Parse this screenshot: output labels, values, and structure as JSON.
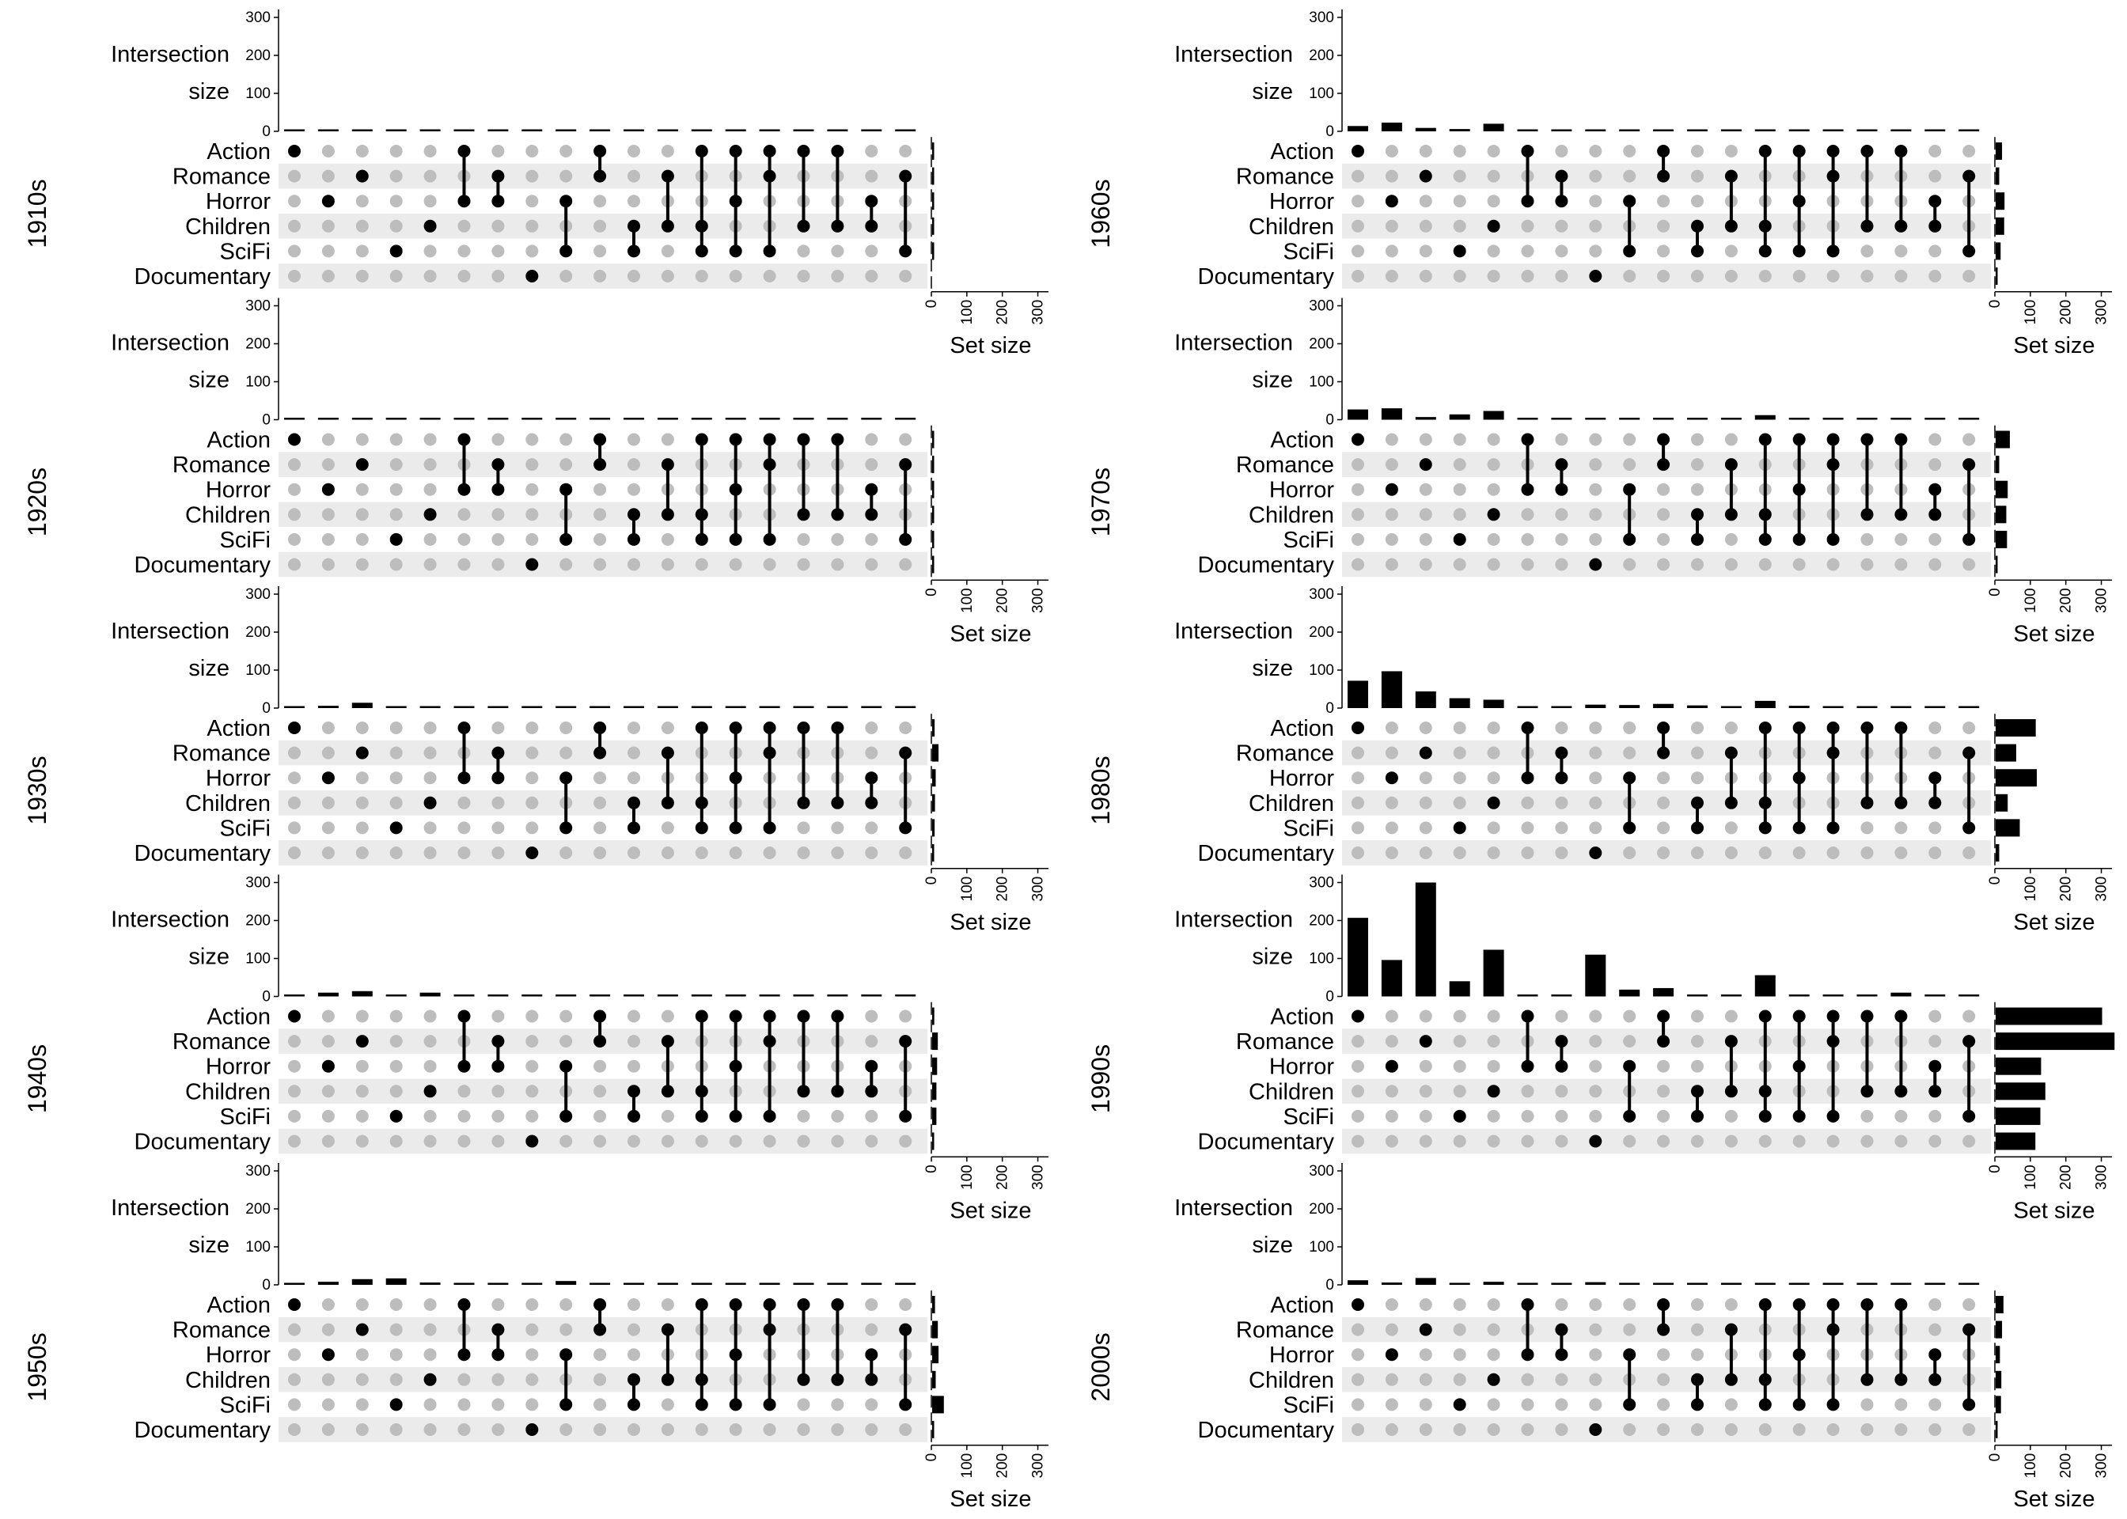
{
  "chart_data": {
    "type": "upset",
    "intersection_axis_label": [
      "Intersection",
      "size"
    ],
    "set_size_label": "Set size",
    "y_ticks": [
      0,
      100,
      200,
      300
    ],
    "y_range": [
      0,
      300
    ],
    "set_size_ticks": [
      0,
      100,
      200,
      300
    ],
    "set_size_range": [
      0,
      330
    ],
    "sets": [
      "Action",
      "Romance",
      "Horror",
      "Children",
      "SciFi",
      "Documentary"
    ],
    "intersections": [
      [
        "Action"
      ],
      [
        "Horror"
      ],
      [
        "Romance"
      ],
      [
        "SciFi"
      ],
      [
        "Children"
      ],
      [
        "Action",
        "Horror"
      ],
      [
        "Romance",
        "Horror"
      ],
      [
        "Documentary"
      ],
      [
        "Horror",
        "SciFi"
      ],
      [
        "Action",
        "Romance"
      ],
      [
        "Children",
        "SciFi"
      ],
      [
        "Romance",
        "Children"
      ],
      [
        "Action",
        "Children",
        "SciFi"
      ],
      [
        "Action",
        "Horror",
        "SciFi"
      ],
      [
        "Action",
        "Romance",
        "SciFi"
      ],
      [
        "Action",
        "Children"
      ],
      [
        "Action",
        "Children"
      ],
      [
        "Horror",
        "Children"
      ],
      [
        "Romance",
        "SciFi"
      ]
    ],
    "colors": {
      "active_dot": "#000000",
      "inactive_dot": "#bdbdbd",
      "stripe": "#ebebeb",
      "bar": "#000000"
    },
    "panels": [
      {
        "label": "1910s",
        "intersection_sizes": [
          2,
          1,
          1,
          1,
          1,
          1,
          1,
          1,
          1,
          1,
          1,
          1,
          1,
          1,
          1,
          1,
          1,
          1,
          1
        ],
        "set_sizes": [
          2,
          1,
          1,
          1,
          1,
          0
        ]
      },
      {
        "label": "1920s",
        "intersection_sizes": [
          2,
          1,
          3,
          1,
          1,
          1,
          1,
          1,
          1,
          1,
          1,
          1,
          1,
          1,
          1,
          1,
          1,
          1,
          1
        ],
        "set_sizes": [
          3,
          2,
          2,
          2,
          2,
          1
        ]
      },
      {
        "label": "1930s",
        "intersection_sizes": [
          4,
          6,
          14,
          1,
          5,
          1,
          1,
          1,
          1,
          1,
          1,
          1,
          1,
          1,
          1,
          1,
          1,
          1,
          1
        ],
        "set_sizes": [
          7,
          18,
          10,
          8,
          7,
          1
        ]
      },
      {
        "label": "1940s",
        "intersection_sizes": [
          4,
          10,
          14,
          1,
          10,
          1,
          1,
          1,
          1,
          1,
          1,
          1,
          1,
          1,
          1,
          1,
          1,
          1,
          1
        ],
        "set_sizes": [
          6,
          16,
          14,
          12,
          12,
          1
        ]
      },
      {
        "label": "1950s",
        "intersection_sizes": [
          5,
          8,
          15,
          17,
          6,
          1,
          1,
          1,
          10,
          1,
          1,
          1,
          1,
          1,
          1,
          1,
          1,
          1,
          1
        ],
        "set_sizes": [
          8,
          16,
          18,
          10,
          33,
          1
        ]
      },
      {
        "label": "1960s",
        "intersection_sizes": [
          14,
          23,
          9,
          6,
          20,
          1,
          1,
          1,
          3,
          1,
          1,
          1,
          2,
          1,
          1,
          1,
          1,
          1,
          1
        ],
        "set_sizes": [
          18,
          10,
          25,
          24,
          14,
          1
        ]
      },
      {
        "label": "1970s",
        "intersection_sizes": [
          27,
          30,
          7,
          14,
          23,
          3,
          1,
          4,
          3,
          2,
          3,
          2,
          12,
          2,
          2,
          2,
          1,
          1,
          2
        ],
        "set_sizes": [
          40,
          10,
          34,
          30,
          32,
          4
        ]
      },
      {
        "label": "1980s",
        "intersection_sizes": [
          72,
          97,
          44,
          26,
          22,
          5,
          1,
          9,
          8,
          11,
          7,
          4,
          19,
          6,
          3,
          3,
          2,
          2,
          3
        ],
        "set_sizes": [
          113,
          58,
          116,
          34,
          68,
          10
        ]
      },
      {
        "label": "1990s",
        "intersection_sizes": [
          207,
          96,
          300,
          40,
          123,
          5,
          2,
          110,
          18,
          22,
          3,
          5,
          56,
          5,
          3,
          3,
          10,
          3,
          4
        ],
        "set_sizes": [
          300,
          335,
          128,
          140,
          126,
          112
        ]
      },
      {
        "label": "2000s",
        "intersection_sizes": [
          12,
          6,
          18,
          4,
          8,
          1,
          1,
          7,
          1,
          1,
          1,
          1,
          3,
          1,
          1,
          1,
          1,
          1,
          1
        ],
        "set_sizes": [
          22,
          18,
          12,
          16,
          15,
          4
        ]
      }
    ]
  }
}
